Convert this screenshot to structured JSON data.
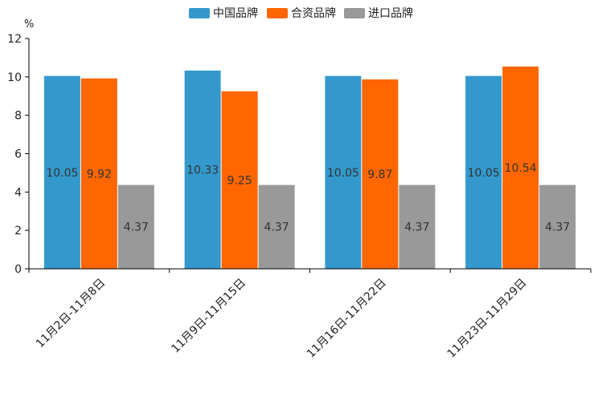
{
  "chart_data": {
    "type": "bar",
    "title": "",
    "xlabel": "",
    "ylabel": "%",
    "ylim": [
      0,
      12
    ],
    "yticks": [
      0,
      2,
      4,
      6,
      8,
      10,
      12
    ],
    "grid": false,
    "legend_position": "top-center",
    "categories": [
      "11月2日-11月8日",
      "11月9日-11月15日",
      "11月16日-11月22日",
      "11月23日-11月29日"
    ],
    "series": [
      {
        "name": "中国品牌",
        "color": "#3399CC",
        "values": [
          10.05,
          10.33,
          10.05,
          10.05
        ]
      },
      {
        "name": "合资品牌",
        "color": "#FF6600",
        "values": [
          9.92,
          9.25,
          9.87,
          10.54
        ]
      },
      {
        "name": "进口品牌",
        "color": "#999999",
        "values": [
          4.37,
          4.37,
          4.37,
          4.37
        ]
      }
    ]
  }
}
